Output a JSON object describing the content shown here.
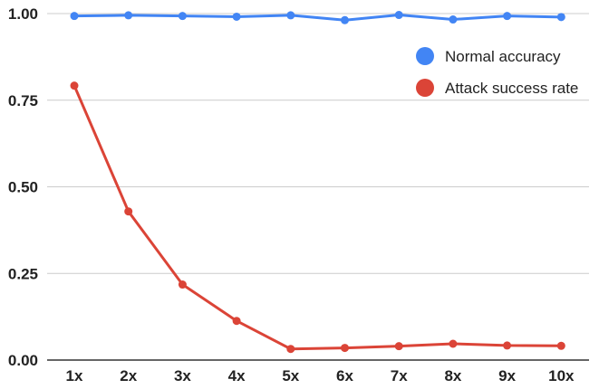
{
  "chart_data": {
    "type": "line",
    "title": "",
    "xlabel": "",
    "ylabel": "",
    "categories": [
      "1x",
      "2x",
      "3x",
      "4x",
      "5x",
      "6x",
      "7x",
      "8x",
      "9x",
      "10x"
    ],
    "ylim": [
      0,
      1
    ],
    "yticks": [
      "0.00",
      "0.25",
      "0.50",
      "0.75",
      "1.00"
    ],
    "grid": true,
    "legend_position": "top-right",
    "series": [
      {
        "name": "Normal accuracy",
        "color": "#4285f4",
        "values": [
          0.993,
          0.995,
          0.993,
          0.991,
          0.995,
          0.981,
          0.996,
          0.983,
          0.993,
          0.99
        ]
      },
      {
        "name": "Attack success rate",
        "color": "#db4437",
        "values": [
          0.792,
          0.429,
          0.218,
          0.113,
          0.032,
          0.035,
          0.04,
          0.047,
          0.042,
          0.041
        ]
      }
    ]
  }
}
